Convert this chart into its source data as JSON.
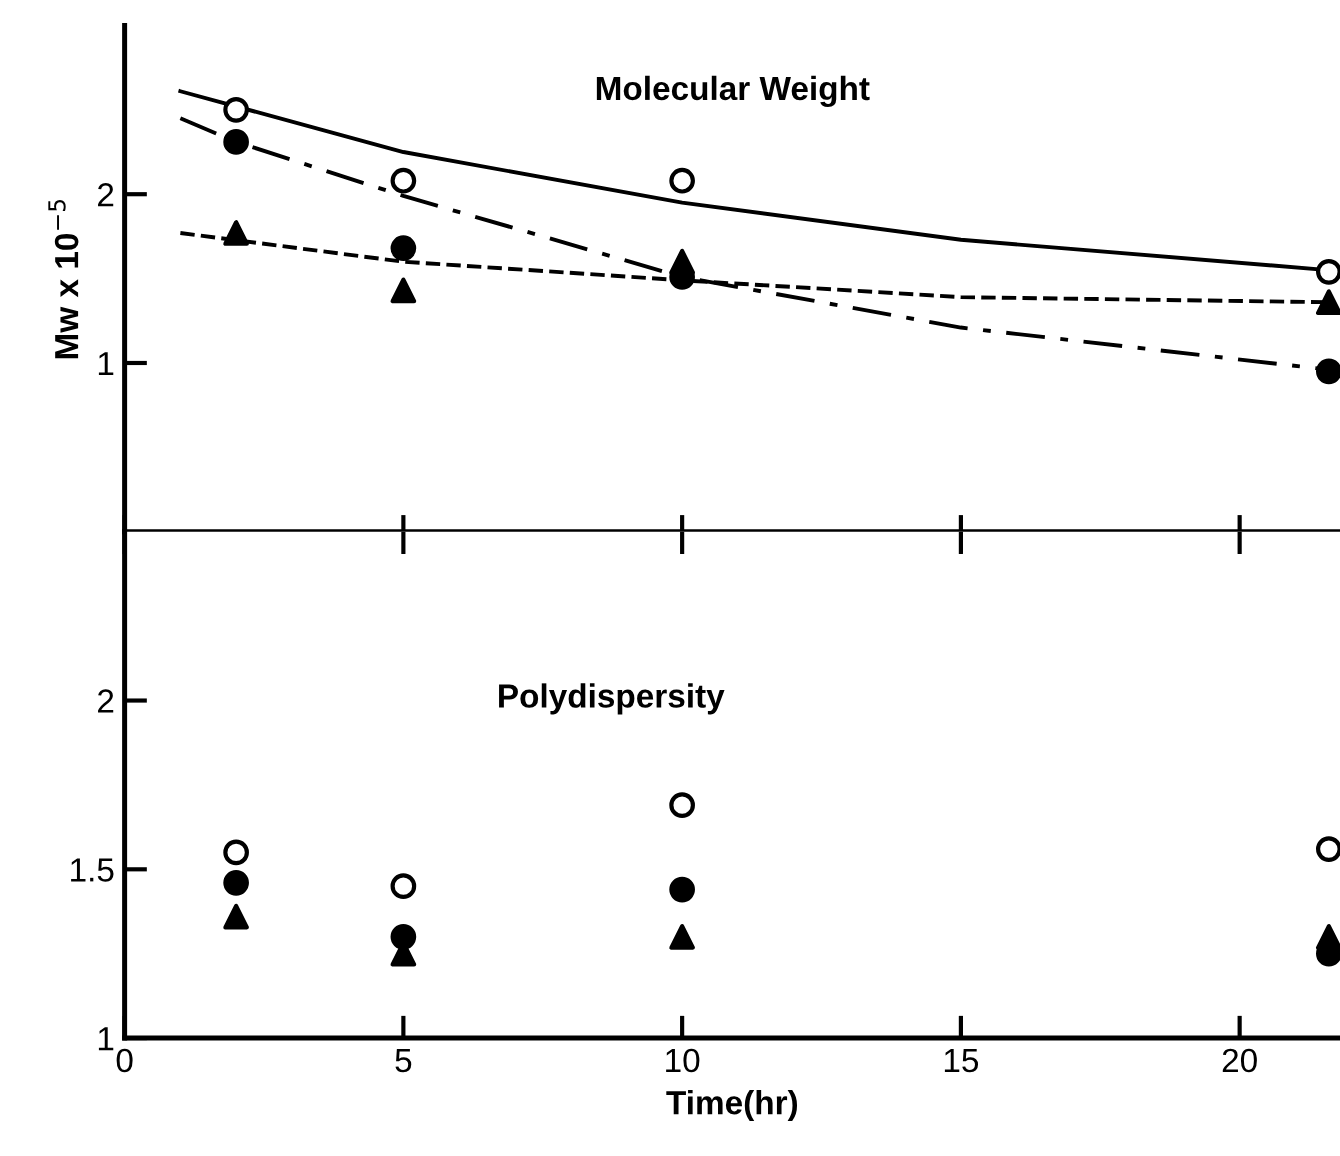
{
  "chart_data": [
    {
      "type": "scatter",
      "title": "Molecular Weight",
      "ylabel": "Mw x 10$^{−5}$",
      "xlim": [
        0,
        21.8
      ],
      "xticks": [
        {
          "value": 0,
          "label": null
        },
        {
          "value": 5,
          "label": null
        },
        {
          "value": 10,
          "label": null
        },
        {
          "value": 15,
          "label": null
        },
        {
          "value": 20,
          "label": null
        }
      ],
      "ylim": [
        0,
        3.0
      ],
      "yticks": [
        1,
        2
      ],
      "tick_labels": "y",
      "grid": false,
      "legend": false,
      "series": [
        {
          "type": "line",
          "line_style": "solid",
          "marker": "none",
          "color": "#000000",
          "x": [
            1,
            5,
            10,
            15,
            21.6
          ],
          "values": [
            2.61,
            2.25,
            1.95,
            1.73,
            1.55
          ]
        },
        {
          "type": "line",
          "line_style": "dashdot",
          "marker": "none",
          "color": "#000000",
          "x": [
            1,
            2,
            5,
            10,
            15,
            21.6
          ],
          "values": [
            2.45,
            2.31,
            1.99,
            1.51,
            1.21,
            0.96
          ]
        },
        {
          "type": "line",
          "line_style": "dashed",
          "marker": "none",
          "color": "#000000",
          "x": [
            1,
            5,
            10,
            15,
            21.6
          ],
          "values": [
            1.77,
            1.6,
            1.49,
            1.39,
            1.36
          ]
        },
        {
          "marker": "circle",
          "color": "#ffffff",
          "x": [
            2,
            5,
            10,
            21.6
          ],
          "values": [
            2.5,
            2.08,
            2.08,
            1.54
          ]
        },
        {
          "marker": "circle",
          "color": "#000000",
          "x": [
            2,
            5,
            10,
            21.6
          ],
          "values": [
            2.31,
            1.68,
            1.51,
            0.95
          ]
        },
        {
          "marker": "triangle",
          "color": "#000000",
          "x": [
            2,
            5,
            10,
            21.6
          ],
          "values": [
            1.77,
            1.43,
            1.6,
            1.36
          ]
        }
      ]
    },
    {
      "type": "scatter",
      "title": "Polydispersity",
      "xlabel": "Time(hr)",
      "xlim": [
        0,
        21.8
      ],
      "xticks": [
        0,
        5,
        10,
        15,
        20
      ],
      "ylim": [
        1,
        2.5
      ],
      "yticks": [
        1,
        1.5,
        2
      ],
      "grid": false,
      "legend": false,
      "series": [
        {
          "marker": "circle",
          "color": "#ffffff",
          "x": [
            2,
            5,
            10,
            21.6
          ],
          "values": [
            1.55,
            1.45,
            1.69,
            1.56
          ]
        },
        {
          "marker": "circle",
          "color": "#000000",
          "x": [
            2,
            5,
            10,
            21.6
          ],
          "values": [
            1.46,
            1.3,
            1.44,
            1.25
          ]
        },
        {
          "marker": "triangle",
          "color": "#000000",
          "x": [
            2,
            5,
            10,
            21.6
          ],
          "values": [
            1.36,
            1.25,
            1.3,
            1.3
          ]
        }
      ]
    }
  ]
}
